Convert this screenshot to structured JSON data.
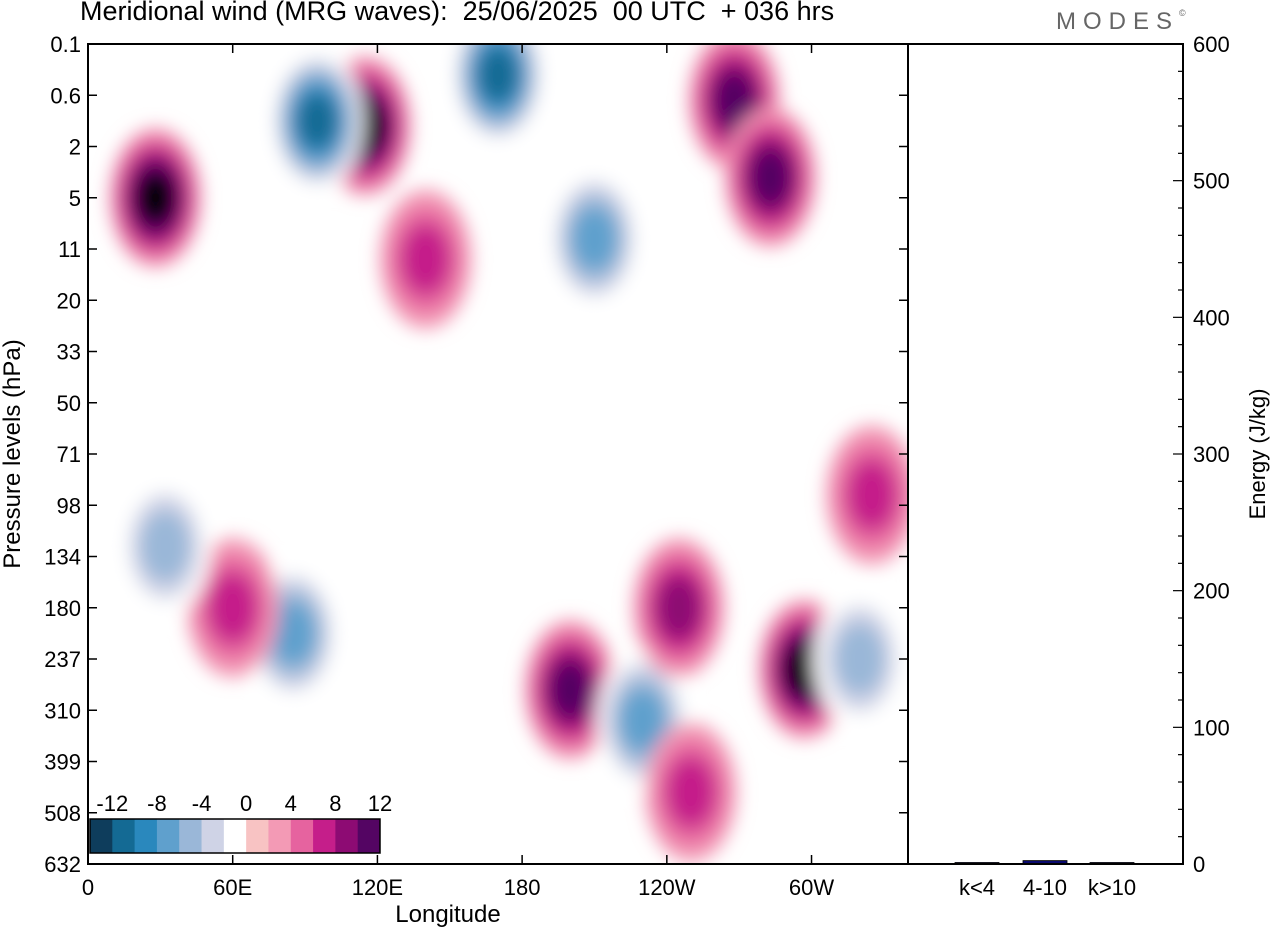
{
  "header": {
    "title": "Meridional wind (MRG waves):  25/06/2025  00 UTC  + 036 hrs",
    "brand": "MODES",
    "brand_mark": "©"
  },
  "chart_data": [
    {
      "type": "heatmap",
      "title": "Meridional wind (MRG waves):  25/06/2025  00 UTC  + 036 hrs",
      "xlabel": "Longitude",
      "ylabel": "Pressure levels (hPa)",
      "x_ticks": [
        "0",
        "60E",
        "120E",
        "180",
        "120W",
        "60W"
      ],
      "x_tick_degrees": [
        0,
        60,
        120,
        180,
        240,
        300
      ],
      "xlim": [
        0,
        340
      ],
      "y_ticks": [
        "0.1",
        "0.6",
        "2",
        "5",
        "11",
        "20",
        "33",
        "50",
        "71",
        "98",
        "134",
        "180",
        "237",
        "310",
        "399",
        "508",
        "632"
      ],
      "y_scale": "categorical pressure levels, top to bottom",
      "colorbar": {
        "tick_labels": [
          "-12",
          "-8",
          "-4",
          "0",
          "4",
          "8",
          "12"
        ],
        "levels": [
          -14,
          -12,
          -10,
          -8,
          -6,
          -4,
          -2,
          2,
          4,
          6,
          8,
          10,
          12,
          14
        ],
        "colors": [
          "#0e3d5c",
          "#146a94",
          "#2a88bd",
          "#5fa0cd",
          "#9ab7d8",
          "#cfd3e6",
          "#ffffff",
          "#f8c3c3",
          "#f39ab5",
          "#e6639f",
          "#c51e8a",
          "#8d0b73",
          "#540563"
        ]
      },
      "features": [
        {
          "lon": 28,
          "level": 3.0,
          "value": 14
        },
        {
          "lon": 115,
          "level": 1.6,
          "value": 14
        },
        {
          "lon": 95,
          "level": 1.5,
          "value": -14
        },
        {
          "lon": 170,
          "level": 0.6,
          "value": -14
        },
        {
          "lon": 268,
          "level": 1.1,
          "value": 12
        },
        {
          "lon": 210,
          "level": 3.8,
          "value": -10
        },
        {
          "lon": 283,
          "level": 2.6,
          "value": 12
        },
        {
          "lon": 297,
          "level": 12.2,
          "value": 14
        },
        {
          "lon": 200,
          "level": 12.6,
          "value": 12
        },
        {
          "lon": 85,
          "level": 11.5,
          "value": -10
        },
        {
          "lon": 60,
          "level": 11.0,
          "value": 8
        },
        {
          "lon": 230,
          "level": 13.2,
          "value": -10
        },
        {
          "lon": 32,
          "level": 9.8,
          "value": -8
        },
        {
          "lon": 245,
          "level": 11.0,
          "value": 10
        },
        {
          "lon": 250,
          "level": 14.6,
          "value": 8
        },
        {
          "lon": 320,
          "level": 12.0,
          "value": -8
        },
        {
          "lon": 140,
          "level": 4.2,
          "value": 8
        },
        {
          "lon": 325,
          "level": 8.8,
          "value": 8
        }
      ]
    },
    {
      "type": "bar",
      "ylabel": "Energy (J/kg)",
      "categories": [
        "k<4",
        "4-10",
        "k>10"
      ],
      "values": [
        0.4,
        2.5,
        0.2
      ],
      "ylim": [
        0,
        600
      ],
      "y_ticks": [
        0,
        100,
        200,
        300,
        400,
        500,
        600
      ]
    }
  ]
}
